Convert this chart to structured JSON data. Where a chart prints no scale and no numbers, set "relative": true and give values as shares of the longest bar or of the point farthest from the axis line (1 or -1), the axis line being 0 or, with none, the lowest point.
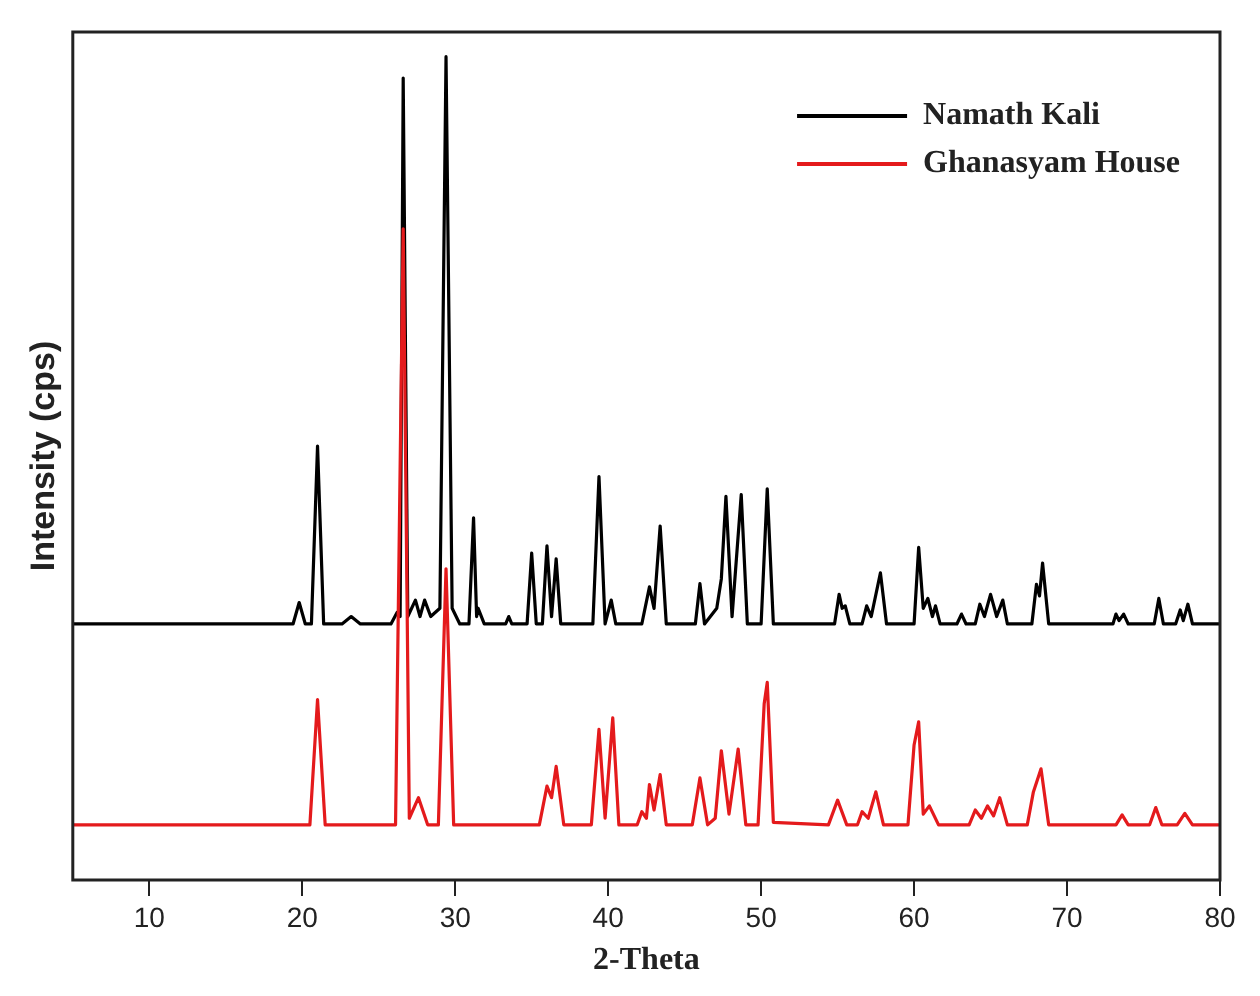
{
  "chart_data": {
    "type": "line",
    "xlabel": "2-Theta",
    "ylabel": "Intensity (cps)",
    "relative": true,
    "xlim": [
      5,
      80
    ],
    "xticks": [
      10,
      20,
      30,
      40,
      50,
      60,
      70,
      80
    ],
    "legend": "top right",
    "marker": "none",
    "line_style": "solid",
    "series": [
      {
        "name": "Namath Kali",
        "color": "#000000",
        "x": [
          5,
          19.4,
          19.8,
          20.2,
          20.6,
          21.0,
          21.4,
          22.6,
          23.2,
          23.8,
          25.8,
          26.2,
          26.4,
          26.6,
          26.9,
          27.4,
          27.7,
          28.0,
          28.4,
          29.0,
          29.4,
          29.8,
          30.3,
          30.9,
          31.2,
          31.4,
          31.5,
          31.9,
          33.3,
          33.5,
          33.7,
          34.7,
          35.0,
          35.3,
          35.7,
          36.0,
          36.3,
          36.6,
          36.9,
          39.0,
          39.4,
          39.8,
          40.2,
          40.5,
          42.2,
          42.7,
          43.0,
          43.4,
          43.8,
          45.7,
          46.0,
          46.3,
          47.1,
          47.4,
          47.7,
          48.1,
          48.7,
          49.1,
          50.0,
          50.4,
          50.8,
          54.8,
          55.1,
          55.3,
          55.5,
          55.8,
          56.6,
          56.9,
          57.2,
          57.8,
          58.2,
          60.0,
          60.3,
          60.6,
          60.9,
          61.2,
          61.4,
          61.7,
          62.8,
          63.1,
          63.4,
          64.0,
          64.3,
          64.6,
          65.0,
          65.4,
          65.8,
          66.1,
          67.7,
          68.0,
          68.2,
          68.4,
          68.8,
          73.0,
          73.2,
          73.4,
          73.7,
          74.0,
          75.7,
          76.0,
          76.3,
          77.1,
          77.4,
          77.6,
          77.9,
          78.2,
          80
        ],
        "values": [
          0.311,
          0.311,
          0.337,
          0.311,
          0.311,
          0.527,
          0.311,
          0.311,
          0.32,
          0.311,
          0.311,
          0.325,
          0.32,
          0.974,
          0.32,
          0.34,
          0.32,
          0.34,
          0.32,
          0.33,
          1.0,
          0.33,
          0.311,
          0.311,
          0.44,
          0.32,
          0.33,
          0.311,
          0.311,
          0.32,
          0.311,
          0.311,
          0.397,
          0.311,
          0.311,
          0.406,
          0.32,
          0.39,
          0.311,
          0.311,
          0.49,
          0.311,
          0.34,
          0.311,
          0.311,
          0.356,
          0.33,
          0.43,
          0.311,
          0.311,
          0.36,
          0.311,
          0.33,
          0.366,
          0.466,
          0.32,
          0.468,
          0.311,
          0.311,
          0.475,
          0.311,
          0.311,
          0.347,
          0.33,
          0.333,
          0.311,
          0.311,
          0.333,
          0.32,
          0.373,
          0.311,
          0.311,
          0.404,
          0.33,
          0.342,
          0.32,
          0.333,
          0.311,
          0.311,
          0.323,
          0.311,
          0.311,
          0.335,
          0.32,
          0.347,
          0.32,
          0.34,
          0.311,
          0.311,
          0.359,
          0.345,
          0.385,
          0.311,
          0.311,
          0.323,
          0.315,
          0.323,
          0.311,
          0.311,
          0.342,
          0.311,
          0.311,
          0.328,
          0.315,
          0.335,
          0.311,
          0.311
        ]
      },
      {
        "name": "Ghanasyam House",
        "color": "#e41a1c",
        "x": [
          5,
          20.5,
          21.0,
          21.5,
          26.1,
          26.6,
          27.0,
          27.6,
          28.2,
          28.9,
          29.4,
          29.9,
          35.5,
          36.0,
          36.3,
          36.6,
          37.1,
          38.9,
          39.4,
          39.8,
          40.3,
          40.7,
          41.9,
          42.2,
          42.5,
          42.7,
          43.0,
          43.4,
          43.8,
          45.5,
          46.0,
          46.5,
          47.0,
          47.4,
          47.9,
          48.5,
          49.0,
          49.8,
          50.2,
          50.4,
          50.8,
          54.4,
          55.0,
          55.6,
          56.3,
          56.6,
          57.0,
          57.5,
          58.0,
          59.6,
          60.0,
          60.3,
          60.6,
          61.0,
          61.6,
          63.6,
          64.0,
          64.4,
          64.8,
          65.2,
          65.6,
          66.1,
          67.4,
          67.8,
          68.3,
          68.8,
          73.2,
          73.6,
          74.0,
          75.4,
          75.8,
          76.2,
          77.2,
          77.7,
          78.2,
          80
        ],
        "values": [
          0.067,
          0.067,
          0.219,
          0.067,
          0.067,
          0.791,
          0.075,
          0.1,
          0.067,
          0.067,
          0.378,
          0.067,
          0.067,
          0.114,
          0.1,
          0.138,
          0.067,
          0.067,
          0.183,
          0.075,
          0.197,
          0.067,
          0.067,
          0.083,
          0.075,
          0.116,
          0.085,
          0.128,
          0.067,
          0.067,
          0.124,
          0.067,
          0.075,
          0.157,
          0.08,
          0.159,
          0.067,
          0.067,
          0.214,
          0.24,
          0.07,
          0.067,
          0.097,
          0.067,
          0.067,
          0.083,
          0.075,
          0.107,
          0.067,
          0.067,
          0.164,
          0.192,
          0.08,
          0.09,
          0.067,
          0.067,
          0.085,
          0.075,
          0.09,
          0.078,
          0.1,
          0.067,
          0.067,
          0.107,
          0.135,
          0.067,
          0.067,
          0.079,
          0.067,
          0.067,
          0.088,
          0.067,
          0.067,
          0.081,
          0.067,
          0.067
        ]
      }
    ]
  }
}
